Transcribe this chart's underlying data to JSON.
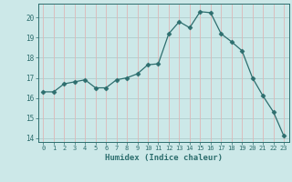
{
  "x_data": [
    0,
    1,
    2,
    3,
    4,
    5,
    6,
    7,
    8,
    9,
    10,
    11,
    12,
    13,
    14,
    15,
    16,
    17,
    18,
    19,
    20,
    21,
    22,
    23
  ],
  "y_data": [
    16.3,
    16.3,
    16.7,
    16.8,
    16.9,
    16.5,
    16.5,
    16.9,
    17.0,
    17.2,
    17.65,
    17.7,
    19.2,
    19.8,
    19.5,
    20.3,
    20.25,
    19.2,
    18.8,
    18.35,
    17.0,
    16.1,
    15.3,
    14.1
  ],
  "line_color": "#2d6e6e",
  "marker": "D",
  "marker_size": 2.5,
  "bg_color": "#cce8e8",
  "grid_color_h": "#b0cccc",
  "grid_color_v": "#ddb8b8",
  "xlabel": "Humidex (Indice chaleur)",
  "xlim": [
    -0.5,
    23.5
  ],
  "ylim": [
    13.8,
    20.7
  ],
  "yticks": [
    14,
    15,
    16,
    17,
    18,
    19,
    20
  ],
  "xticks": [
    0,
    1,
    2,
    3,
    4,
    5,
    6,
    7,
    8,
    9,
    10,
    11,
    12,
    13,
    14,
    15,
    16,
    17,
    18,
    19,
    20,
    21,
    22,
    23
  ]
}
